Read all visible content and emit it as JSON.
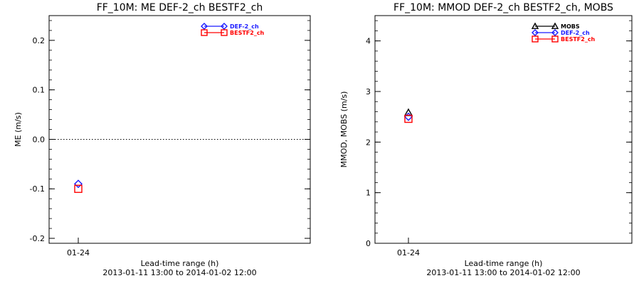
{
  "chart_data": [
    {
      "type": "scatter",
      "title": "FF_10M: ME DEF-2_ch BESTF2_ch",
      "xlabel": "Lead-time range (h)",
      "xsub": "2013-01-11 13:00 to 2014-01-02 12:00",
      "ylabel": "ME (m/s)",
      "categories": [
        "01-24"
      ],
      "ylim": [
        -0.21,
        0.25
      ],
      "yticks": [
        -0.2,
        -0.1,
        0.0,
        0.1,
        0.2
      ],
      "ytick_labels": [
        "-0.2",
        "-0.1",
        "0.0",
        "0.1",
        "0.2"
      ],
      "zero_line": true,
      "legend": "top-right",
      "series": [
        {
          "name": "DEF-2_ch",
          "marker": "diamond",
          "color": "#1a1aff",
          "values": [
            -0.09
          ]
        },
        {
          "name": "BESTF2_ch",
          "marker": "square",
          "color": "#ff0000",
          "values": [
            -0.1
          ]
        }
      ]
    },
    {
      "type": "scatter",
      "title": "FF_10M: MMOD DEF-2_ch BESTF2_ch, MOBS",
      "xlabel": "Lead-time range (h)",
      "xsub": "2013-01-11 13:00 to 2014-01-02 12:00",
      "ylabel": "MMOD, MOBS (m/s)",
      "categories": [
        "01-24"
      ],
      "ylim": [
        0,
        4.5
      ],
      "yticks": [
        0,
        1,
        2,
        3,
        4
      ],
      "ytick_labels": [
        "0",
        "1",
        "2",
        "3",
        "4"
      ],
      "zero_line": false,
      "legend": "top-right",
      "series": [
        {
          "name": "MOBS",
          "marker": "triangle",
          "color": "#000000",
          "values": [
            2.58
          ]
        },
        {
          "name": "DEF-2_ch",
          "marker": "diamond",
          "color": "#1a1aff",
          "values": [
            2.5
          ]
        },
        {
          "name": "BESTF2_ch",
          "marker": "square",
          "color": "#ff0000",
          "values": [
            2.46
          ]
        }
      ]
    }
  ]
}
